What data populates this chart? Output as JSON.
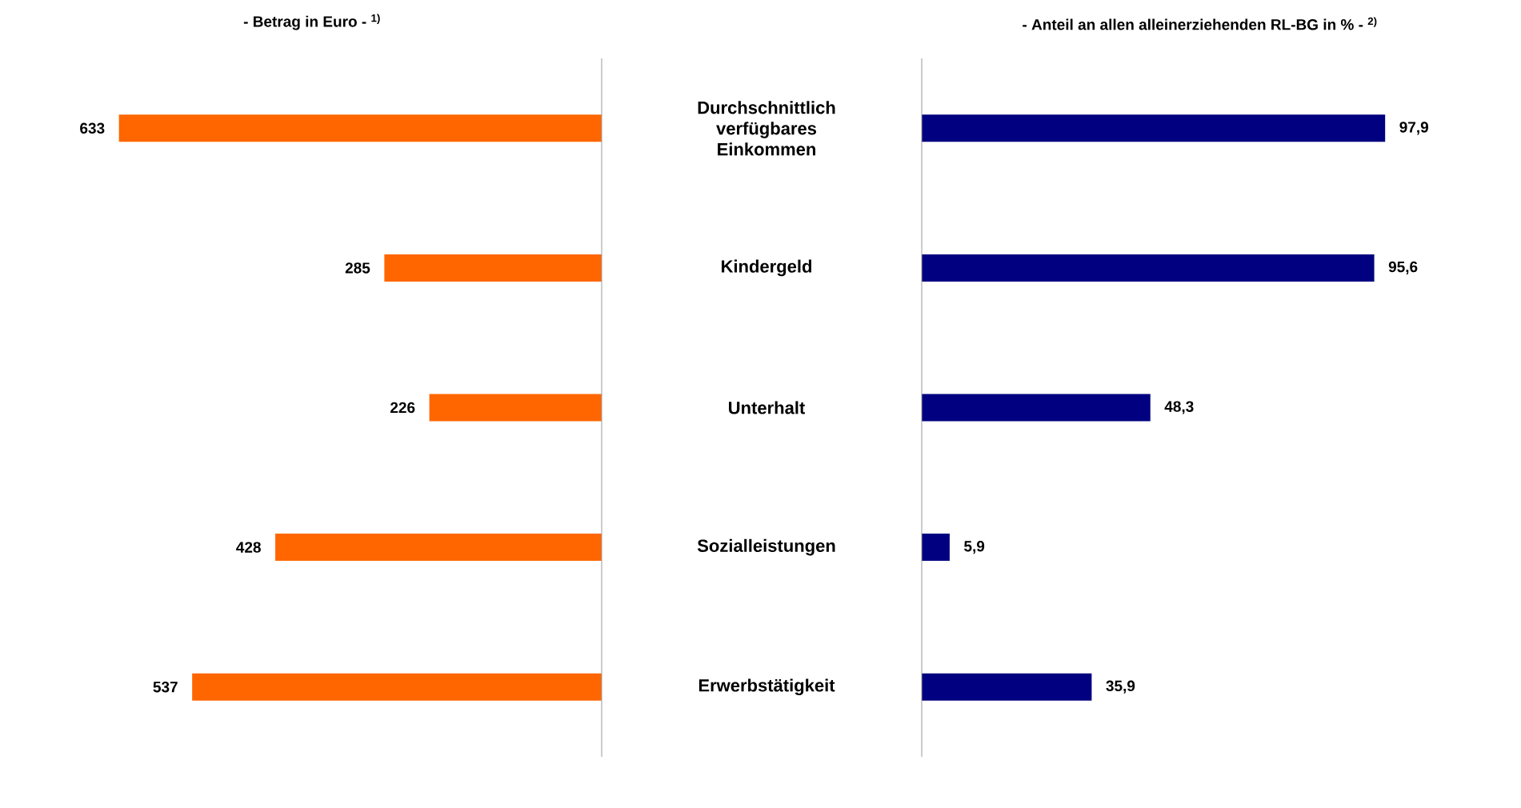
{
  "chart_data": [
    {
      "type": "bar",
      "orientation": "horizontal",
      "title": "- Betrag in Euro - $^{1)}$",
      "categories": [
        "Durchschnittlich verfügbares Einkommen",
        "Kindergeld",
        "Unterhalt",
        "Sozialleistungen",
        "Erwerbstätigkeit"
      ],
      "values": [
        633,
        285,
        226,
        428,
        537
      ],
      "value_labels": [
        "633",
        "285",
        "226",
        "428",
        "537"
      ],
      "color": "#ff6600",
      "tick_labels": "y"
    },
    {
      "type": "bar",
      "orientation": "horizontal",
      "title": "- Anteil an allen alleinerziehenden RL-BG in % - $^{2)}$",
      "categories": [
        null,
        null,
        null,
        null,
        null
      ],
      "values": [
        97.9,
        95.6,
        48.3,
        5.9,
        35.9
      ],
      "value_labels": [
        "97,9",
        "95,6",
        "48,3",
        "5,9",
        "35,9"
      ],
      "color": "#000080",
      "tick_labels": false
    }
  ]
}
